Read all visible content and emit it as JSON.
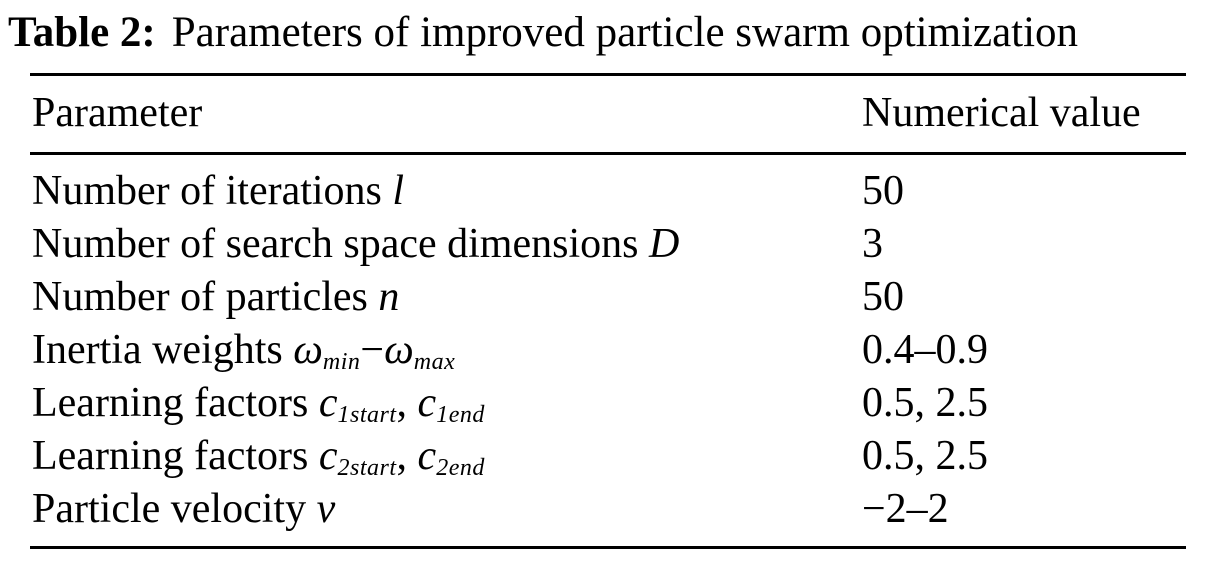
{
  "title": {
    "label": "Table 2:",
    "text": "Parameters of improved particle swarm optimization"
  },
  "table": {
    "headers": {
      "parameter": "Parameter",
      "value": "Numerical value"
    },
    "rows": [
      {
        "parameter": [
          {
            "text": "Number of iterations "
          },
          {
            "text": "l",
            "italic": true
          }
        ],
        "value": "50"
      },
      {
        "parameter": [
          {
            "text": "Number of search space dimensions "
          },
          {
            "text": "D",
            "italic": true
          }
        ],
        "value": "3"
      },
      {
        "parameter": [
          {
            "text": "Number of particles "
          },
          {
            "text": "n",
            "italic": true
          }
        ],
        "value": "50"
      },
      {
        "parameter": [
          {
            "text": "Inertia weights "
          },
          {
            "text": "ω",
            "italic": true
          },
          {
            "text": "min",
            "italic": true,
            "sub": true
          },
          {
            "text": "−"
          },
          {
            "text": "ω",
            "italic": true
          },
          {
            "text": "max",
            "italic": true,
            "sub": true
          }
        ],
        "value": "0.4–0.9"
      },
      {
        "parameter": [
          {
            "text": "Learning factors "
          },
          {
            "text": "c",
            "italic": true
          },
          {
            "text": "1start",
            "italic": true,
            "sub": true
          },
          {
            "text": ", "
          },
          {
            "text": "c",
            "italic": true
          },
          {
            "text": "1end",
            "italic": true,
            "sub": true
          }
        ],
        "value": "0.5, 2.5"
      },
      {
        "parameter": [
          {
            "text": "Learning factors "
          },
          {
            "text": "c",
            "italic": true
          },
          {
            "text": "2start",
            "italic": true,
            "sub": true
          },
          {
            "text": ", "
          },
          {
            "text": "c",
            "italic": true
          },
          {
            "text": "2end",
            "italic": true,
            "sub": true
          }
        ],
        "value": "0.5, 2.5"
      },
      {
        "parameter": [
          {
            "text": "Particle velocity "
          },
          {
            "text": "v",
            "italic": true
          }
        ],
        "value": "−2–2"
      }
    ]
  }
}
